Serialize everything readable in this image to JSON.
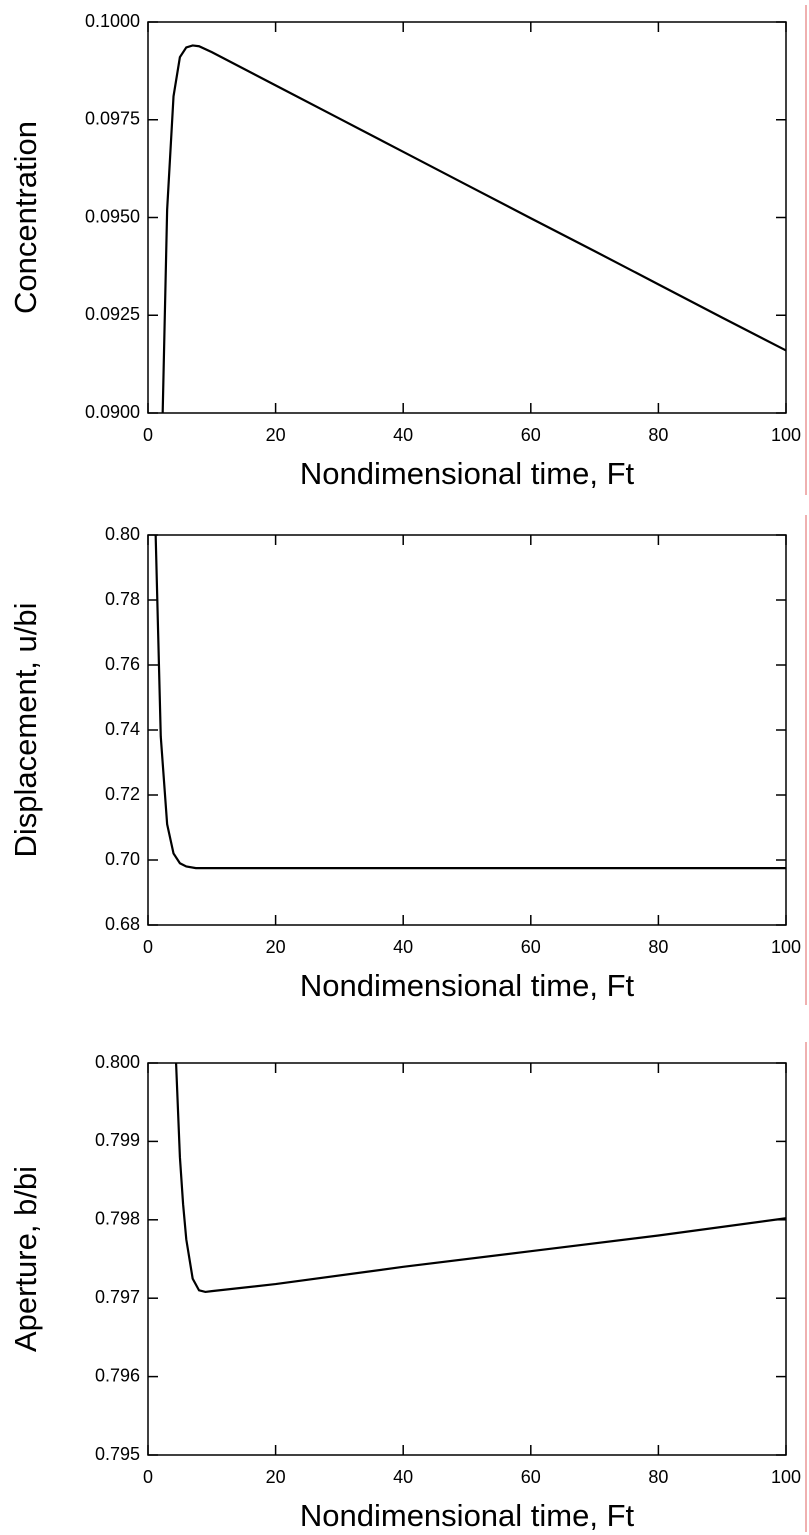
{
  "chart_data": [
    {
      "type": "line",
      "xlabel": "Nondimensional time, Ft",
      "ylabel": "Concentration",
      "x": [
        2.3,
        3,
        4,
        5,
        6,
        7,
        8,
        10,
        20,
        30,
        40,
        50,
        60,
        70,
        80,
        90,
        100
      ],
      "values": [
        0.09,
        0.0952,
        0.0981,
        0.0991,
        0.09935,
        0.0994,
        0.09938,
        0.09923,
        0.09838,
        0.09753,
        0.09668,
        0.09583,
        0.09498,
        0.09414,
        0.09329,
        0.09244,
        0.0916
      ],
      "color": "#000000",
      "xlim": [
        0,
        100
      ],
      "xticks": [
        0,
        20,
        40,
        60,
        80,
        100
      ],
      "ylim": [
        0.09,
        0.1
      ],
      "yticks": [
        {
          "value": 0.09,
          "label": "0.0900"
        },
        0.0925,
        {
          "value": 0.095,
          "label": "0.0950"
        },
        0.0975,
        {
          "value": 0.1,
          "label": "0.1000"
        }
      ],
      "grid": false
    },
    {
      "type": "line",
      "xlabel": "Nondimensional time, Ft",
      "ylabel": "Displacement, u/bi",
      "x": [
        1.2,
        2,
        3,
        4,
        5,
        6,
        7.5,
        100
      ],
      "values": [
        0.8,
        0.738,
        0.711,
        0.702,
        0.699,
        0.698,
        0.6975,
        0.6975
      ],
      "color": "#000000",
      "xlim": [
        0,
        100
      ],
      "xticks": [
        0,
        20,
        40,
        60,
        80,
        100
      ],
      "ylim": [
        0.68,
        0.8
      ],
      "yticks": [
        0.68,
        {
          "value": 0.7,
          "label": "0.70"
        },
        0.72,
        0.74,
        0.76,
        0.78,
        {
          "value": 0.8,
          "label": "0.80"
        }
      ],
      "grid": false
    },
    {
      "type": "line",
      "xlabel": "Nondimensional time, Ft",
      "ylabel": "Aperture, b/bi",
      "x": [
        4.4,
        5,
        5.5,
        6,
        7,
        8,
        9,
        10,
        20,
        40,
        60,
        80,
        100
      ],
      "values": [
        0.8,
        0.7988,
        0.7982,
        0.79775,
        0.79725,
        0.7971,
        0.79708,
        0.79709,
        0.79718,
        0.7974,
        0.7976,
        0.7978,
        0.79802
      ],
      "color": "#000000",
      "xlim": [
        0,
        100
      ],
      "xticks": [
        0,
        20,
        40,
        60,
        80,
        100
      ],
      "ylim": [
        0.795,
        0.8
      ],
      "yticks": [
        0.795,
        0.796,
        0.797,
        0.798,
        0.799,
        {
          "value": 0.8,
          "label": "0.800"
        }
      ],
      "grid": false
    }
  ]
}
